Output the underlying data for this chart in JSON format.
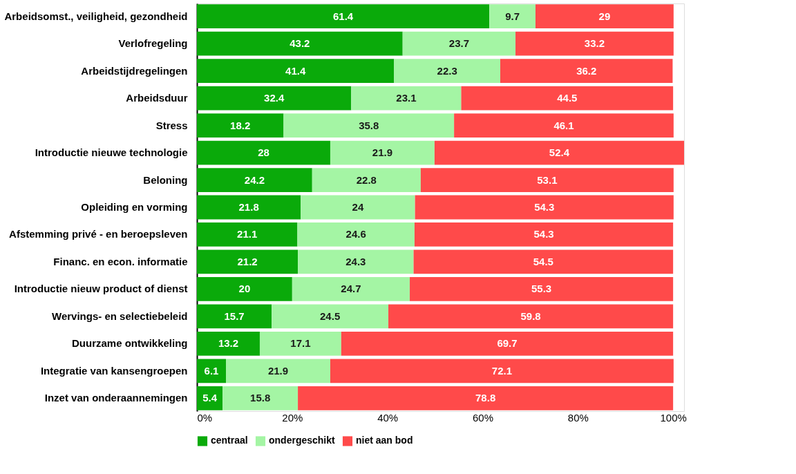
{
  "chart_data": {
    "type": "bar",
    "orientation": "horizontal",
    "stacked": true,
    "data_labels": true,
    "legend": "bottom",
    "categories": [
      "Arbeidsomst., veiligheid, gezondheid",
      "Verlofregeling",
      "Arbeidstijdregelingen",
      "Arbeidsduur",
      "Stress",
      "Introductie nieuwe technologie",
      "Beloning",
      "Opleiding en vorming",
      "Afstemming privé - en beroepsleven",
      "Financ. en econ. informatie",
      "Introductie nieuw product of dienst",
      "Wervings- en selectiebeleid",
      "Duurzame ontwikkeling",
      "Integratie van kansengroepen",
      "Inzet van onderaannemingen"
    ],
    "series": [
      {
        "name": "centraal",
        "color": "#0aaa0a",
        "values": [
          61.4,
          43.2,
          41.4,
          32.4,
          18.2,
          28,
          24.2,
          21.8,
          21.1,
          21.2,
          20,
          15.7,
          13.2,
          6.1,
          5.4
        ]
      },
      {
        "name": "ondergeschikt",
        "color": "#a4f5a4",
        "values": [
          9.7,
          23.7,
          22.3,
          23.1,
          35.8,
          21.9,
          22.8,
          24,
          24.6,
          24.3,
          24.7,
          24.5,
          17.1,
          21.9,
          15.8
        ]
      },
      {
        "name": "niet aan bod",
        "color": "#ff4a4a",
        "values": [
          29,
          33.2,
          36.2,
          44.5,
          46.1,
          52.4,
          53.1,
          54.3,
          54.3,
          54.5,
          55.3,
          59.8,
          69.7,
          72.1,
          78.8
        ]
      }
    ],
    "xlim": [
      0,
      102.3
    ],
    "xticks": [
      {
        "value": 0,
        "label": "0%"
      },
      {
        "value": 20,
        "label": "20%"
      },
      {
        "value": 40,
        "label": "40%"
      },
      {
        "value": 60,
        "label": "60%"
      },
      {
        "value": 80,
        "label": "80%"
      },
      {
        "value": 100,
        "label": "100%"
      }
    ]
  }
}
